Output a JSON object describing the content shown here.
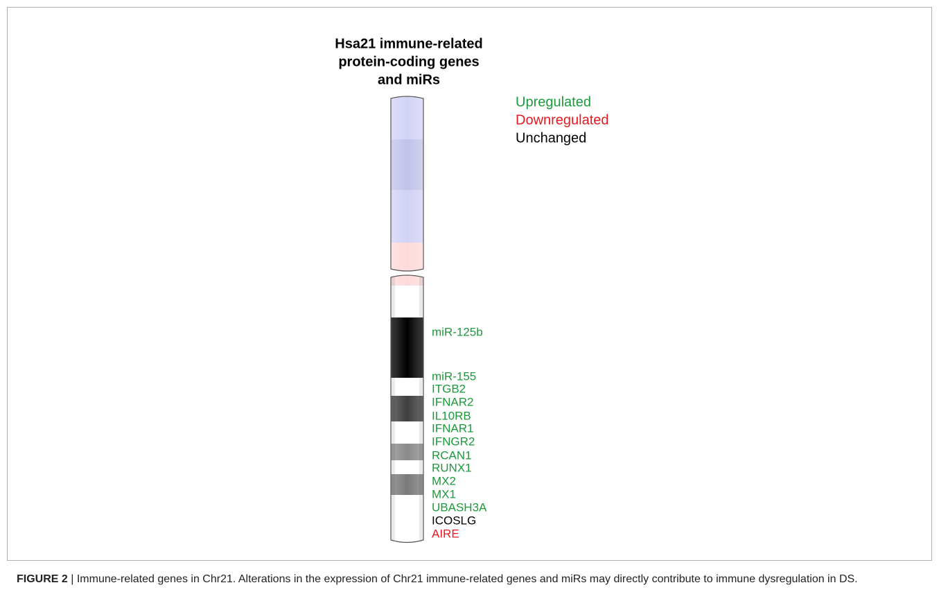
{
  "title": [
    "Hsa21 immune-related",
    "protein-coding genes",
    "and miRs"
  ],
  "legend": [
    {
      "label": "Upregulated",
      "color": "#1a9a3a"
    },
    {
      "label": "Downregulated",
      "color": "#e8191f"
    },
    {
      "label": "Unchanged",
      "color": "#000000"
    }
  ],
  "genes": [
    {
      "name": "miR-125b",
      "color": "#1a9a3a"
    },
    {
      "name": "miR-155",
      "color": "#1a9a3a"
    },
    {
      "name": "ITGB2",
      "color": "#1a9a3a"
    },
    {
      "name": "IFNAR2",
      "color": "#1a9a3a"
    },
    {
      "name": "IL10RB",
      "color": "#1a9a3a"
    },
    {
      "name": "IFNAR1",
      "color": "#1a9a3a"
    },
    {
      "name": "IFNGR2",
      "color": "#1a9a3a"
    },
    {
      "name": "RCAN1",
      "color": "#1a9a3a"
    },
    {
      "name": "RUNX1",
      "color": "#1a9a3a"
    },
    {
      "name": "MX2",
      "color": "#1a9a3a"
    },
    {
      "name": "MX1",
      "color": "#1a9a3a"
    },
    {
      "name": "UBASH3A",
      "color": "#1a9a3a"
    },
    {
      "name": "ICOSLG",
      "color": "#000000"
    },
    {
      "name": "AIRE",
      "color": "#e8191f"
    }
  ],
  "caption": {
    "label": "FIGURE 2",
    "text": "| Immune-related genes in Chr21. Alterations in the expression of Chr21 immune-related genes and miRs may directly contribute to immune dysregulation in DS."
  }
}
